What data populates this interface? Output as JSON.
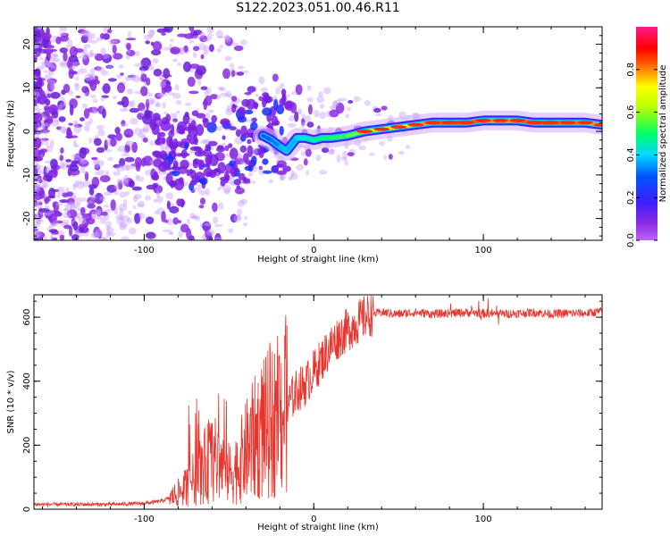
{
  "title": "S122.2023.051.00.46.R11",
  "chart_data": [
    {
      "type": "heatmap",
      "xlabel": "Height of straight line (km)",
      "ylabel": "Frequency (Hz)",
      "xlim": [
        -165,
        170
      ],
      "ylim": [
        -25,
        24
      ],
      "xticks": [
        -100,
        0,
        100
      ],
      "yticks": [
        -20,
        -10,
        0,
        10,
        20
      ],
      "colorbar": {
        "label": "Normalized spectral amplitude",
        "range": [
          0,
          1
        ],
        "ticks": [
          0.0,
          0.2,
          0.4,
          0.6,
          0.8
        ],
        "colormap": "rainbow (purple-blue-cyan-green-yellow-red-pink)"
      },
      "ridge": {
        "x": [
          -30,
          -25,
          -20,
          -16,
          -13,
          -10,
          -5,
          0,
          5,
          10,
          20,
          30,
          40,
          50,
          60,
          70,
          80,
          90,
          100,
          110,
          120,
          130,
          140,
          150,
          160,
          170
        ],
        "freq": [
          -1,
          -2,
          -3.5,
          -4.5,
          -3,
          -1.5,
          -1.5,
          -2,
          -1.5,
          -1.5,
          -1,
          0,
          0.5,
          1,
          1.5,
          2,
          2,
          2,
          2.5,
          2.5,
          2.5,
          2,
          2,
          2,
          2,
          1.5
        ],
        "amplitude": [
          0.3,
          0.3,
          0.35,
          0.4,
          0.35,
          0.4,
          0.45,
          0.45,
          0.5,
          0.5,
          0.55,
          0.6,
          0.65,
          0.7,
          0.75,
          0.8,
          0.85,
          0.85,
          0.8,
          0.75,
          0.8,
          0.85,
          0.85,
          0.8,
          0.8,
          0.75
        ]
      }
    },
    {
      "type": "line",
      "xlabel": "Height of straight line (km)",
      "ylabel": "SNR (10 * v/v)",
      "xlim": [
        -165,
        170
      ],
      "ylim": [
        0,
        670
      ],
      "xticks": [
        -100,
        0,
        100
      ],
      "yticks": [
        0,
        200,
        400,
        600
      ],
      "series": [
        {
          "color": "#e8342c",
          "x": [
            -165,
            -140,
            -120,
            -100,
            -90,
            -85,
            -80,
            -75,
            -70,
            -65,
            -60,
            -55,
            -50,
            -45,
            -40,
            -35,
            -30,
            -25,
            -20,
            -15,
            -10,
            -5,
            0,
            5,
            10,
            15,
            20,
            25,
            30,
            35,
            40,
            50,
            60,
            70,
            80,
            90,
            100,
            110,
            120,
            130,
            140,
            150,
            160,
            170
          ],
          "y": [
            15,
            15,
            15,
            18,
            25,
            35,
            50,
            70,
            100,
            130,
            160,
            140,
            110,
            130,
            180,
            220,
            250,
            270,
            300,
            330,
            370,
            390,
            430,
            470,
            510,
            540,
            560,
            580,
            600,
            610,
            615,
            610,
            615,
            610,
            612,
            615,
            612,
            610,
            612,
            615,
            610,
            612,
            612,
            618
          ]
        }
      ]
    }
  ]
}
